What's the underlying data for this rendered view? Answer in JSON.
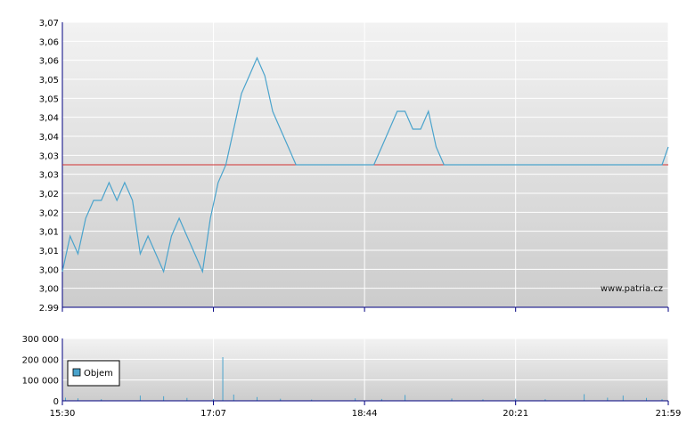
{
  "watermark": "www.patria.cz",
  "colors": {
    "price_line": "#4aa3cc",
    "reference_line": "#d03030",
    "volume_bar": "#4aa3cc",
    "grid": "#ffffff",
    "axis": "#000080",
    "plot_bg_top": "#f2f2f2",
    "plot_bg_bottom": "#cccccc"
  },
  "chart_data": [
    {
      "type": "line",
      "name": "price",
      "x_ticks": [
        "15:30",
        "17:07",
        "18:44",
        "20:21",
        "21:59"
      ],
      "y_tick_labels": [
        "3,07",
        "3,06",
        "3,06",
        "3,05",
        "3,05",
        "3,04",
        "3,04",
        "3,03",
        "3,03",
        "3,02",
        "3,02",
        "3,01",
        "3,01",
        "3,00",
        "3,00",
        "2.99"
      ],
      "ylim": [
        2.99,
        3.07
      ],
      "reference_value": 3.03,
      "grid": true,
      "x": [
        "15:30",
        "15:35",
        "15:40",
        "15:45",
        "15:50",
        "15:55",
        "16:00",
        "16:05",
        "16:10",
        "16:15",
        "16:20",
        "16:25",
        "16:30",
        "16:35",
        "16:40",
        "16:45",
        "16:50",
        "16:55",
        "17:00",
        "17:05",
        "17:10",
        "17:15",
        "17:20",
        "17:25",
        "17:30",
        "17:35",
        "17:40",
        "17:45",
        "17:50",
        "17:55",
        "18:00",
        "18:05",
        "18:10",
        "18:15",
        "18:20",
        "18:25",
        "18:30",
        "18:35",
        "18:40",
        "18:45",
        "18:50",
        "18:55",
        "19:00",
        "19:05",
        "19:10",
        "19:15",
        "19:20",
        "19:25",
        "19:30",
        "19:35",
        "19:40",
        "19:45",
        "19:50",
        "19:55",
        "20:00",
        "20:05",
        "20:10",
        "20:15",
        "20:20",
        "20:25",
        "20:30",
        "20:35",
        "20:40",
        "20:45",
        "20:50",
        "20:55",
        "21:00",
        "21:05",
        "21:10",
        "21:15",
        "21:20",
        "21:25",
        "21:30",
        "21:35",
        "21:40",
        "21:45",
        "21:50",
        "21:55",
        "21:59"
      ],
      "y": [
        3.0,
        3.01,
        3.005,
        3.015,
        3.02,
        3.02,
        3.025,
        3.02,
        3.025,
        3.02,
        3.005,
        3.01,
        3.005,
        3.0,
        3.01,
        3.015,
        3.01,
        3.005,
        3.0,
        3.015,
        3.025,
        3.03,
        3.04,
        3.05,
        3.055,
        3.06,
        3.055,
        3.045,
        3.04,
        3.035,
        3.03,
        3.03,
        3.03,
        3.03,
        3.03,
        3.03,
        3.03,
        3.03,
        3.03,
        3.03,
        3.03,
        3.035,
        3.04,
        3.045,
        3.045,
        3.04,
        3.04,
        3.045,
        3.035,
        3.03,
        3.03,
        3.03,
        3.03,
        3.03,
        3.03,
        3.03,
        3.03,
        3.03,
        3.03,
        3.03,
        3.03,
        3.03,
        3.03,
        3.03,
        3.03,
        3.03,
        3.03,
        3.03,
        3.03,
        3.03,
        3.03,
        3.03,
        3.03,
        3.03,
        3.03,
        3.03,
        3.03,
        3.03,
        3.035
      ]
    },
    {
      "type": "bar",
      "name": "volume",
      "legend": [
        "Objem"
      ],
      "legend_position": "bottom-left",
      "x_ticks": [
        "15:30",
        "17:07",
        "18:44",
        "20:21",
        "21:59"
      ],
      "y_tick_labels": [
        "300 000",
        "200 000",
        "100 000",
        "0"
      ],
      "ylim": [
        0,
        300000
      ],
      "grid": true,
      "x": [
        "15:32",
        "15:40",
        "15:55",
        "16:20",
        "16:35",
        "16:50",
        "17:07",
        "17:13",
        "17:20",
        "17:35",
        "17:50",
        "18:10",
        "18:38",
        "18:55",
        "19:10",
        "19:40",
        "20:00",
        "20:21",
        "20:40",
        "21:05",
        "21:20",
        "21:30",
        "21:45",
        "21:55"
      ],
      "values": [
        15000,
        12000,
        8000,
        25000,
        22000,
        14000,
        9000,
        210000,
        30000,
        18000,
        10000,
        6000,
        12000,
        9000,
        28000,
        11000,
        7000,
        10000,
        8000,
        32000,
        15000,
        25000,
        14000,
        8000
      ]
    }
  ]
}
